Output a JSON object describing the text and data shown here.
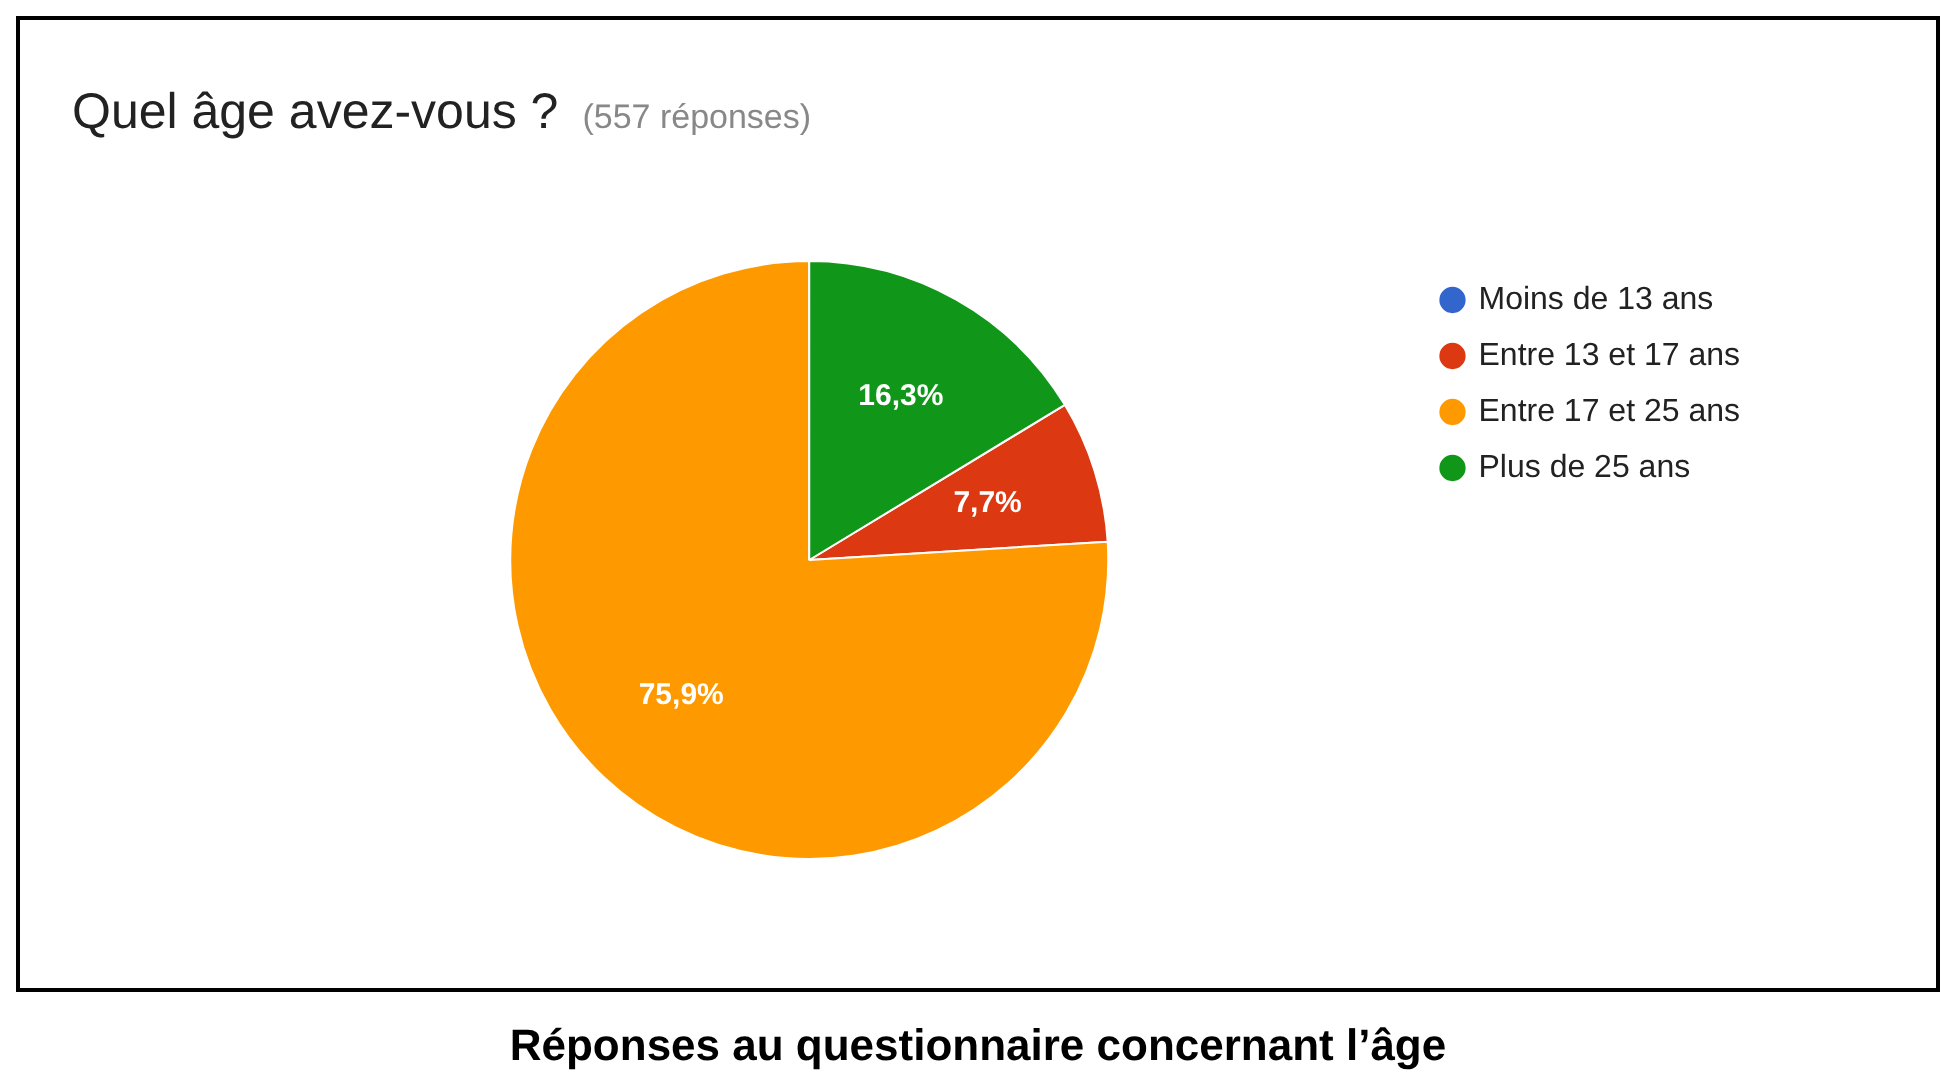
{
  "chart_data": {
    "type": "pie",
    "title": "Quel âge avez-vous ?",
    "subtitle": "(557 réponses)",
    "categories": [
      "Moins de 13 ans",
      "Entre 13 et 17 ans",
      "Entre 17 et 25 ans",
      "Plus de 25 ans"
    ],
    "values": [
      0,
      7.7,
      75.9,
      16.3
    ],
    "colors": [
      "#3366cc",
      "#dc3912",
      "#ff9900",
      "#109618"
    ],
    "value_labels": [
      null,
      "7,7%",
      "75,9%",
      "16,3%"
    ],
    "legend": "right",
    "annotations": [
      "Réponses au questionnaire concernant l’âge"
    ]
  }
}
